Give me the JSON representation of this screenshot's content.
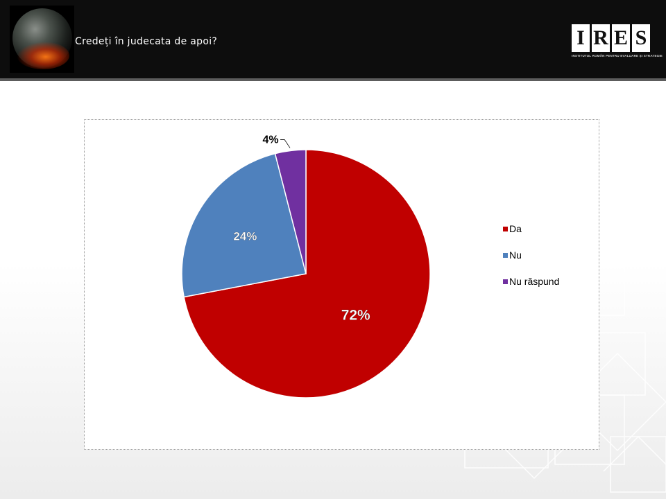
{
  "header": {
    "title": "Credeți în judecata de apoi?",
    "logo_letters": [
      "I",
      "R",
      "E",
      "S"
    ],
    "logo_subtitle": "INSTITUTUL ROMÂN PENTRU EVALUARE ȘI STRATEGIE"
  },
  "chart_data": {
    "type": "pie",
    "categories": [
      "Da",
      "Nu",
      "Nu răspund"
    ],
    "values": [
      72,
      24,
      4
    ],
    "labels": [
      "72%",
      "24%",
      "4%"
    ],
    "colors": [
      "#c00000",
      "#4f81bd",
      "#7030a0"
    ],
    "legend_position": "right",
    "title": ""
  }
}
